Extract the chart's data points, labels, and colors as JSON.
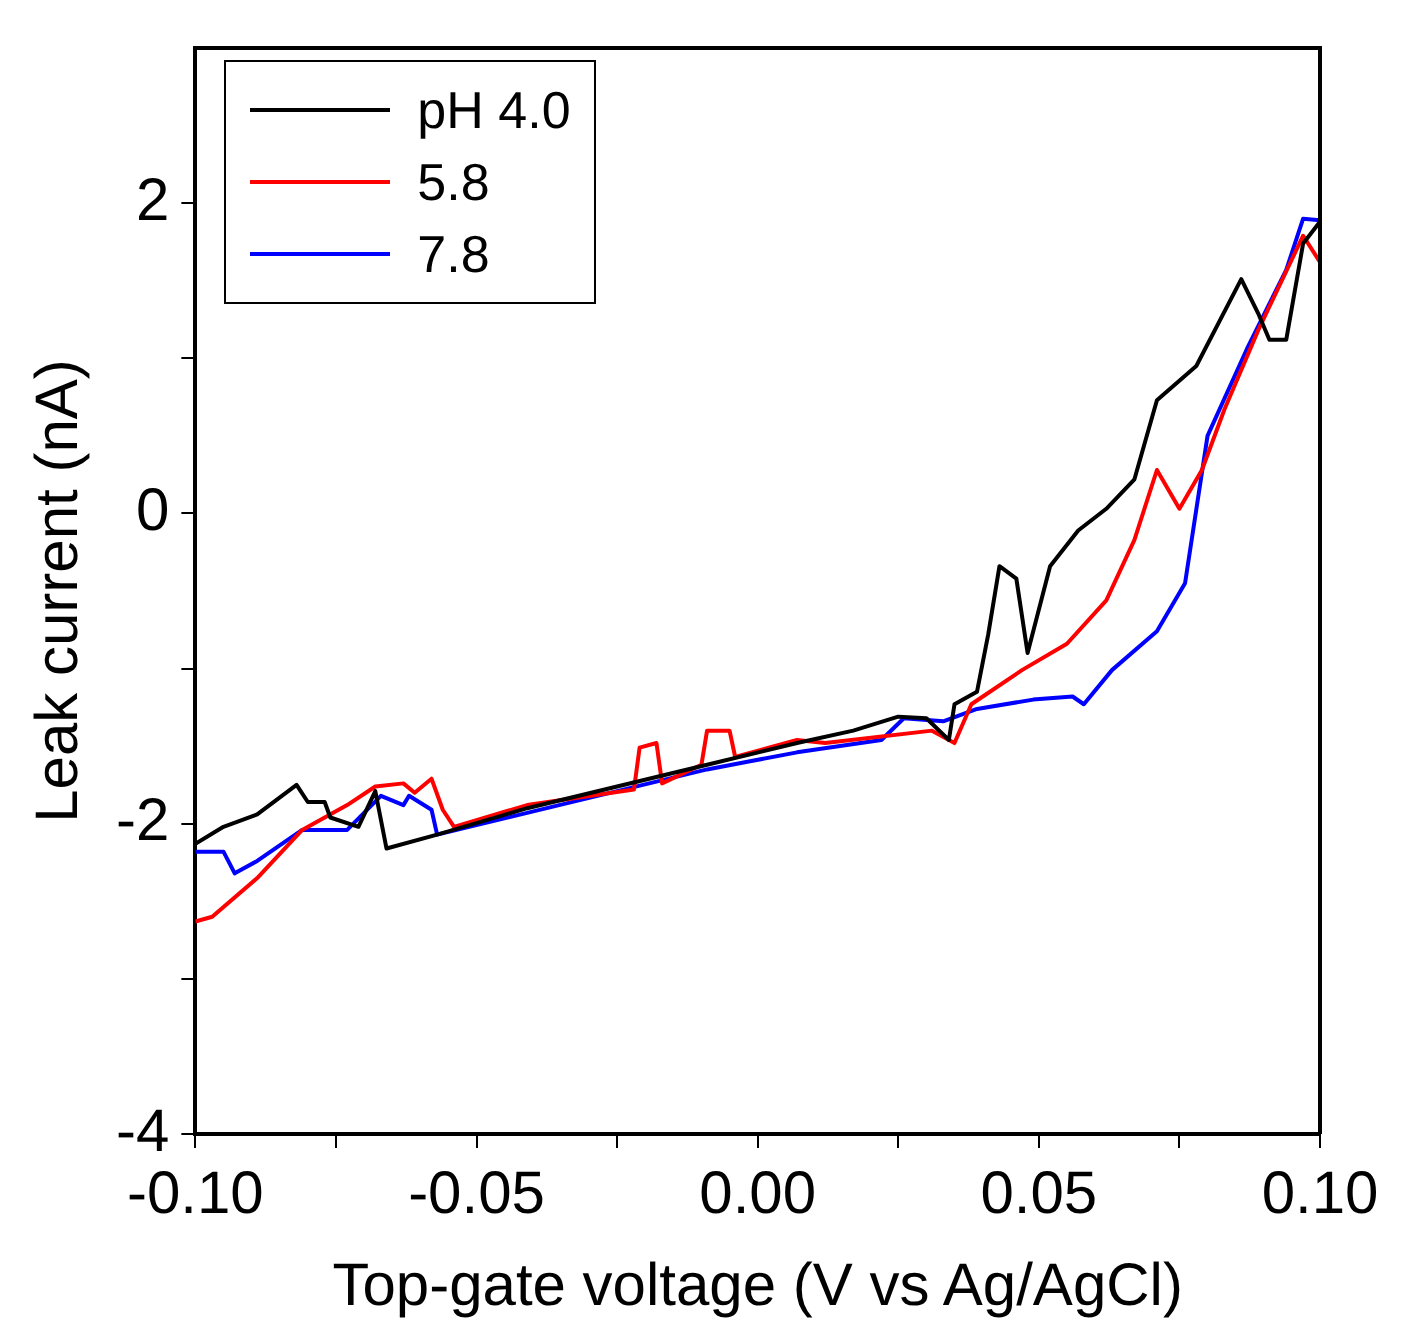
{
  "chart_data": {
    "type": "line",
    "xlabel": "Top-gate voltage (V vs Ag/AgCl)",
    "ylabel": "Leak current (nA)",
    "xlim": [
      -0.1,
      0.1
    ],
    "ylim": [
      -4,
      3
    ],
    "xticks": [
      {
        "value": -0.1,
        "label": "-0.10"
      },
      {
        "value": -0.075,
        "label": null
      },
      -0.05,
      {
        "value": -0.025,
        "label": null
      },
      {
        "value": 0,
        "label": "0.00"
      },
      {
        "value": 0.025,
        "label": null
      },
      0.05,
      {
        "value": 0.075,
        "label": null
      },
      {
        "value": 0.1,
        "label": "0.10"
      }
    ],
    "yticks": [
      -4,
      {
        "value": -3,
        "label": null
      },
      -2,
      {
        "value": -1,
        "label": null
      },
      0,
      {
        "value": 1,
        "label": null
      },
      2
    ],
    "grid": false,
    "legend": "top left",
    "marker": "none",
    "line_style": "solid",
    "series": [
      {
        "name": "pH 4.0",
        "color": "#000000",
        "x": [
          -0.1,
          -0.095,
          -0.089,
          -0.082,
          -0.08,
          -0.077,
          -0.076,
          -0.071,
          -0.068,
          -0.066,
          -0.057,
          -0.041,
          -0.025,
          -0.009,
          0.007,
          0.017,
          0.025,
          0.03,
          0.034,
          0.035,
          0.039,
          0.041,
          0.043,
          0.046,
          0.048,
          0.052,
          0.057,
          0.062,
          0.067,
          0.071,
          0.078,
          0.086,
          0.089,
          0.091,
          0.094,
          0.097,
          0.1
        ],
        "values": [
          -2.13,
          -2.02,
          -1.94,
          -1.75,
          -1.86,
          -1.86,
          -1.96,
          -2.02,
          -1.79,
          -2.16,
          -2.07,
          -1.9,
          -1.76,
          -1.62,
          -1.48,
          -1.4,
          -1.31,
          -1.32,
          -1.46,
          -1.23,
          -1.15,
          -0.78,
          -0.34,
          -0.42,
          -0.9,
          -0.34,
          -0.11,
          0.03,
          0.22,
          0.73,
          0.95,
          1.51,
          1.29,
          1.12,
          1.12,
          1.74,
          1.88
        ]
      },
      {
        "name": "5.8",
        "color": "#ff0000",
        "x": [
          -0.1,
          -0.097,
          -0.089,
          -0.081,
          -0.073,
          -0.068,
          -0.063,
          -0.061,
          -0.058,
          -0.056,
          -0.054,
          -0.041,
          -0.022,
          -0.021,
          -0.018,
          -0.017,
          -0.01,
          -0.009,
          -0.005,
          -0.004,
          0.007,
          0.012,
          0.031,
          0.035,
          0.038,
          0.047,
          0.055,
          0.062,
          0.067,
          0.071,
          0.075,
          0.079,
          0.083,
          0.089,
          0.097,
          0.1
        ],
        "values": [
          -2.63,
          -2.6,
          -2.35,
          -2.04,
          -1.88,
          -1.76,
          -1.74,
          -1.8,
          -1.71,
          -1.91,
          -2.02,
          -1.88,
          -1.78,
          -1.51,
          -1.48,
          -1.74,
          -1.62,
          -1.4,
          -1.4,
          -1.57,
          -1.46,
          -1.48,
          -1.4,
          -1.48,
          -1.23,
          -1.01,
          -0.84,
          -0.56,
          -0.17,
          0.28,
          0.03,
          0.28,
          0.67,
          1.18,
          1.79,
          1.62
        ]
      },
      {
        "name": "7.8",
        "color": "#0000ff",
        "x": [
          -0.1,
          -0.095,
          -0.093,
          -0.089,
          -0.081,
          -0.073,
          -0.067,
          -0.063,
          -0.062,
          -0.058,
          -0.057,
          -0.041,
          -0.025,
          -0.009,
          0.007,
          0.022,
          0.026,
          0.033,
          0.039,
          0.049,
          0.056,
          0.058,
          0.063,
          0.071,
          0.076,
          0.08,
          0.087,
          0.094,
          0.097,
          0.1
        ],
        "values": [
          -2.18,
          -2.18,
          -2.32,
          -2.24,
          -2.04,
          -2.04,
          -1.82,
          -1.88,
          -1.82,
          -1.91,
          -2.07,
          -1.93,
          -1.79,
          -1.65,
          -1.54,
          -1.46,
          -1.32,
          -1.34,
          -1.26,
          -1.2,
          -1.18,
          -1.23,
          -1.01,
          -0.76,
          -0.45,
          0.5,
          1.06,
          1.57,
          1.9,
          1.89
        ]
      }
    ]
  }
}
